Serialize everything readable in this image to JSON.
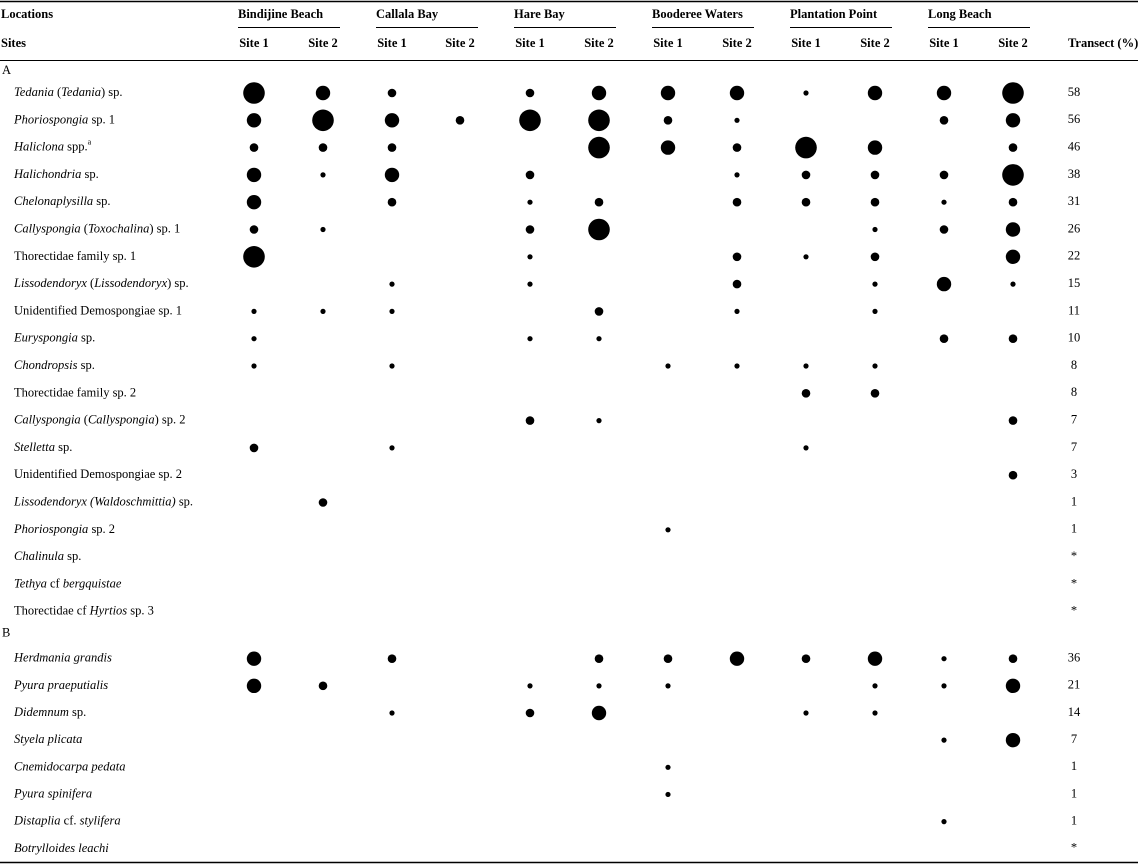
{
  "header": {
    "locations_label": "Locations",
    "sites_label": "Sites",
    "transect_label": "Transect (%)",
    "locations": [
      "Bindijine Beach",
      "Callala Bay",
      "Hare Bay",
      "Booderee Waters",
      "Plantation Point",
      "Long Beach"
    ],
    "site_labels": [
      "Site 1",
      "Site 2"
    ]
  },
  "sections": [
    {
      "label": "A",
      "rows": [
        {
          "name": [
            {
              "i": "Tedania"
            },
            {
              "t": " ("
            },
            {
              "i": "Tedania"
            },
            {
              "t": ") sp."
            }
          ],
          "abundance": [
            4,
            3,
            2,
            null,
            2,
            3,
            3,
            3,
            1,
            3,
            3,
            4
          ],
          "transect": 58
        },
        {
          "name": [
            {
              "i": "Phoriospongia"
            },
            {
              "t": " sp. 1"
            }
          ],
          "abundance": [
            3,
            4,
            3,
            2,
            4,
            4,
            2,
            1,
            null,
            null,
            2,
            3
          ],
          "transect": 56
        },
        {
          "name": [
            {
              "i": "Haliclona"
            },
            {
              "t": " spp."
            },
            {
              "sup": "a"
            }
          ],
          "abundance": [
            2,
            2,
            2,
            null,
            null,
            4,
            3,
            2,
            4,
            3,
            null,
            2
          ],
          "transect": 46
        },
        {
          "name": [
            {
              "i": "Halichondria"
            },
            {
              "t": " sp."
            }
          ],
          "abundance": [
            3,
            1,
            3,
            null,
            2,
            null,
            null,
            1,
            2,
            2,
            2,
            4
          ],
          "transect": 38
        },
        {
          "name": [
            {
              "i": "Chelonaplysilla"
            },
            {
              "t": " sp."
            }
          ],
          "abundance": [
            3,
            null,
            2,
            null,
            1,
            2,
            null,
            2,
            2,
            2,
            1,
            2
          ],
          "transect": 31
        },
        {
          "name": [
            {
              "i": "Callyspongia"
            },
            {
              "t": " ("
            },
            {
              "i": "Toxochalina"
            },
            {
              "t": ") sp. 1"
            }
          ],
          "abundance": [
            2,
            1,
            null,
            null,
            2,
            4,
            null,
            null,
            null,
            1,
            2,
            3
          ],
          "transect": 26
        },
        {
          "name": [
            {
              "t": "Thorectidae family sp. 1"
            }
          ],
          "abundance": [
            4,
            null,
            null,
            null,
            1,
            null,
            null,
            2,
            1,
            2,
            null,
            3
          ],
          "transect": 22
        },
        {
          "name": [
            {
              "i": "Lissodendoryx"
            },
            {
              "t": " ("
            },
            {
              "i": "Lissodendoryx"
            },
            {
              "t": ") sp."
            }
          ],
          "abundance": [
            null,
            null,
            1,
            null,
            1,
            null,
            null,
            2,
            null,
            1,
            3,
            1
          ],
          "transect": 15
        },
        {
          "name": [
            {
              "t": "Unidentified Demospongiae sp. 1"
            }
          ],
          "abundance": [
            1,
            1,
            1,
            null,
            null,
            2,
            null,
            1,
            null,
            1,
            null,
            null
          ],
          "transect": 11
        },
        {
          "name": [
            {
              "i": "Euryspongia"
            },
            {
              "t": " sp."
            }
          ],
          "abundance": [
            1,
            null,
            null,
            null,
            1,
            1,
            null,
            null,
            null,
            null,
            2,
            2
          ],
          "transect": 10
        },
        {
          "name": [
            {
              "i": "Chondropsis"
            },
            {
              "t": " sp."
            }
          ],
          "abundance": [
            1,
            null,
            1,
            null,
            null,
            null,
            1,
            1,
            1,
            1,
            null,
            null
          ],
          "transect": 8
        },
        {
          "name": [
            {
              "t": "Thorectidae family sp. 2"
            }
          ],
          "abundance": [
            null,
            null,
            null,
            null,
            null,
            null,
            null,
            null,
            2,
            2,
            null,
            null
          ],
          "transect": 8
        },
        {
          "name": [
            {
              "i": "Callyspongia"
            },
            {
              "t": " ("
            },
            {
              "i": "Callyspongia"
            },
            {
              "t": ") sp. 2"
            }
          ],
          "abundance": [
            null,
            null,
            null,
            null,
            2,
            1,
            null,
            null,
            null,
            null,
            null,
            2
          ],
          "transect": 7
        },
        {
          "name": [
            {
              "i": "Stelletta"
            },
            {
              "t": " sp."
            }
          ],
          "abundance": [
            2,
            null,
            1,
            null,
            null,
            null,
            null,
            null,
            1,
            null,
            null,
            null
          ],
          "transect": 7
        },
        {
          "name": [
            {
              "t": "Unidentified Demospongiae sp. 2"
            }
          ],
          "abundance": [
            null,
            null,
            null,
            null,
            null,
            null,
            null,
            null,
            null,
            null,
            null,
            2
          ],
          "transect": 3
        },
        {
          "name": [
            {
              "i": "Lissodendoryx (Waldoschmittia)"
            },
            {
              "t": " sp."
            }
          ],
          "abundance": [
            null,
            2,
            null,
            null,
            null,
            null,
            null,
            null,
            null,
            null,
            null,
            null
          ],
          "transect": 1
        },
        {
          "name": [
            {
              "i": "Phoriospongia"
            },
            {
              "t": " sp. 2"
            }
          ],
          "abundance": [
            null,
            null,
            null,
            null,
            null,
            null,
            1,
            null,
            null,
            null,
            null,
            null
          ],
          "transect": 1
        },
        {
          "name": [
            {
              "i": "Chalinula"
            },
            {
              "t": " sp."
            }
          ],
          "abundance": [
            null,
            null,
            null,
            null,
            null,
            null,
            null,
            null,
            null,
            null,
            null,
            null
          ],
          "transect": "*"
        },
        {
          "name": [
            {
              "i": "Tethya"
            },
            {
              "t": " cf "
            },
            {
              "i": "bergquistae"
            }
          ],
          "abundance": [
            null,
            null,
            null,
            null,
            null,
            null,
            null,
            null,
            null,
            null,
            null,
            null
          ],
          "transect": "*"
        },
        {
          "name": [
            {
              "t": "Thorectidae cf "
            },
            {
              "i": "Hyrtios"
            },
            {
              "t": " sp. 3"
            }
          ],
          "abundance": [
            null,
            null,
            null,
            null,
            null,
            null,
            null,
            null,
            null,
            null,
            null,
            null
          ],
          "transect": "*"
        }
      ]
    },
    {
      "label": "B",
      "rows": [
        {
          "name": [
            {
              "i": "Herdmania grandis"
            }
          ],
          "abundance": [
            3,
            null,
            2,
            null,
            null,
            2,
            2,
            3,
            2,
            3,
            1,
            2
          ],
          "transect": 36
        },
        {
          "name": [
            {
              "i": "Pyura praeputialis"
            }
          ],
          "abundance": [
            3,
            2,
            null,
            null,
            1,
            1,
            1,
            null,
            null,
            1,
            1,
            3
          ],
          "transect": 21
        },
        {
          "name": [
            {
              "i": "Didemnum"
            },
            {
              "t": " sp."
            }
          ],
          "abundance": [
            null,
            null,
            1,
            null,
            2,
            3,
            null,
            null,
            1,
            1,
            null,
            null
          ],
          "transect": 14
        },
        {
          "name": [
            {
              "i": "Styela plicata"
            }
          ],
          "abundance": [
            null,
            null,
            null,
            null,
            null,
            null,
            null,
            null,
            null,
            null,
            1,
            3
          ],
          "transect": 7
        },
        {
          "name": [
            {
              "i": "Cnemidocarpa pedata"
            }
          ],
          "abundance": [
            null,
            null,
            null,
            null,
            null,
            null,
            1,
            null,
            null,
            null,
            null,
            null
          ],
          "transect": 1
        },
        {
          "name": [
            {
              "i": "Pyura spinifera"
            }
          ],
          "abundance": [
            null,
            null,
            null,
            null,
            null,
            null,
            1,
            null,
            null,
            null,
            null,
            null
          ],
          "transect": 1
        },
        {
          "name": [
            {
              "i": "Distaplia"
            },
            {
              "t": " cf. "
            },
            {
              "i": "stylifera"
            }
          ],
          "abundance": [
            null,
            null,
            null,
            null,
            null,
            null,
            null,
            null,
            null,
            null,
            1,
            null
          ],
          "transect": 1
        },
        {
          "name": [
            {
              "i": "Botrylloides leachi"
            }
          ],
          "abundance": [
            null,
            null,
            null,
            null,
            null,
            null,
            null,
            null,
            null,
            null,
            null,
            null
          ],
          "transect": "*"
        }
      ]
    }
  ]
}
